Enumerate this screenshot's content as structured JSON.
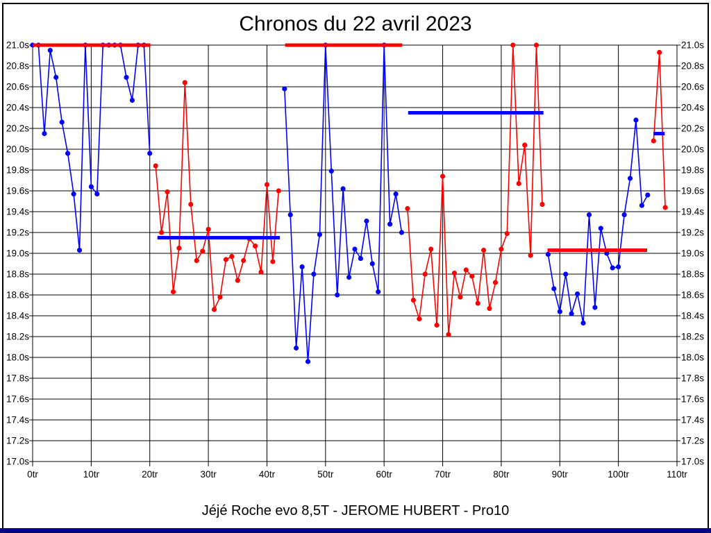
{
  "title": "Chronos du 22 avril 2023",
  "caption": "Jéjé Roche evo 8,5T - JEROME HUBERT - Pro10",
  "colors": {
    "blue_series": "#0000ff",
    "red_series": "#ff0000",
    "grid": "#000000",
    "text": "#000000",
    "background": "#ffffff",
    "bottom_bar": "#000080"
  },
  "chart_data": {
    "type": "line",
    "title": "Chronos du 22 avril 2023",
    "subtitle": "Jéjé Roche evo 8,5T - JEROME HUBERT - Pro10",
    "x_unit": "tr",
    "y_unit": "s",
    "xlim": [
      0,
      110
    ],
    "ylim": [
      17.0,
      21.0
    ],
    "x_tick_step": 10,
    "y_tick_step": 0.2,
    "grid": true,
    "x_ticks": [
      "0tr",
      "10tr",
      "20tr",
      "30tr",
      "40tr",
      "50tr",
      "60tr",
      "70tr",
      "80tr",
      "90tr",
      "100tr",
      "110tr"
    ],
    "y_ticks": [
      "21.0s",
      "20.8s",
      "20.6s",
      "20.4s",
      "20.2s",
      "20.0s",
      "19.8s",
      "19.6s",
      "19.4s",
      "19.2s",
      "19.0s",
      "18.8s",
      "18.6s",
      "18.4s",
      "18.2s",
      "18.0s",
      "17.8s",
      "17.6s",
      "17.4s",
      "17.2s",
      "17.0s"
    ],
    "segments": [
      {
        "name": "run-1",
        "color": "blue",
        "start_lap": 0,
        "values": [
          21.0,
          21.0,
          20.15,
          20.95,
          20.69,
          20.26,
          19.96,
          19.57,
          19.03,
          21.0,
          19.64,
          19.57,
          21.0,
          21.0,
          21.0,
          21.0,
          20.69,
          20.47,
          21.0,
          21.0,
          19.96
        ]
      },
      {
        "name": "run-2",
        "color": "red",
        "start_lap": 21,
        "values": [
          19.84,
          19.2,
          19.59,
          18.63,
          19.05,
          20.64,
          19.47,
          18.93,
          19.02,
          19.23,
          18.46,
          18.58,
          18.94,
          18.97,
          18.74,
          18.93,
          19.14,
          19.07,
          18.82,
          19.66,
          18.92,
          19.6
        ]
      },
      {
        "name": "run-3",
        "color": "blue",
        "start_lap": 43,
        "values": [
          20.58,
          19.37,
          18.09,
          18.87,
          17.96,
          18.8,
          19.18,
          21.0,
          19.79,
          18.6,
          19.62,
          18.77,
          19.04,
          18.95,
          19.31,
          18.9,
          18.63,
          21.0,
          19.28,
          19.57,
          19.2
        ]
      },
      {
        "name": "run-4",
        "color": "red",
        "start_lap": 64,
        "values": [
          19.43,
          18.55,
          18.37,
          18.8,
          19.04,
          18.31,
          19.74,
          18.22,
          18.81,
          18.58,
          18.84,
          18.78,
          18.52,
          19.03,
          18.47,
          18.72,
          19.04,
          19.19,
          21.0,
          19.67,
          20.04,
          18.98,
          21.0,
          19.47
        ]
      },
      {
        "name": "run-5",
        "color": "blue",
        "start_lap": 88,
        "values": [
          18.99,
          18.66,
          18.44,
          18.8,
          18.42,
          18.61,
          18.33,
          19.37,
          18.48,
          19.24,
          19.0,
          18.86,
          18.87,
          19.37,
          19.72,
          20.28,
          19.46,
          19.56
        ]
      },
      {
        "name": "run-6",
        "color": "red",
        "start_lap": 106,
        "values": [
          20.08,
          20.93,
          19.44
        ]
      }
    ],
    "average_lines": [
      {
        "color": "red",
        "value": 21.0,
        "lap_start": 0.0,
        "lap_end": 20.1
      },
      {
        "color": "blue",
        "value": 19.15,
        "lap_start": 21.3,
        "lap_end": 42.2
      },
      {
        "color": "red",
        "value": 21.0,
        "lap_start": 43.1,
        "lap_end": 63.1
      },
      {
        "color": "blue",
        "value": 20.35,
        "lap_start": 64.1,
        "lap_end": 87.2
      },
      {
        "color": "red",
        "value": 19.03,
        "lap_start": 87.9,
        "lap_end": 104.9
      },
      {
        "color": "blue",
        "value": 20.15,
        "lap_start": 106.0,
        "lap_end": 107.9
      }
    ]
  }
}
